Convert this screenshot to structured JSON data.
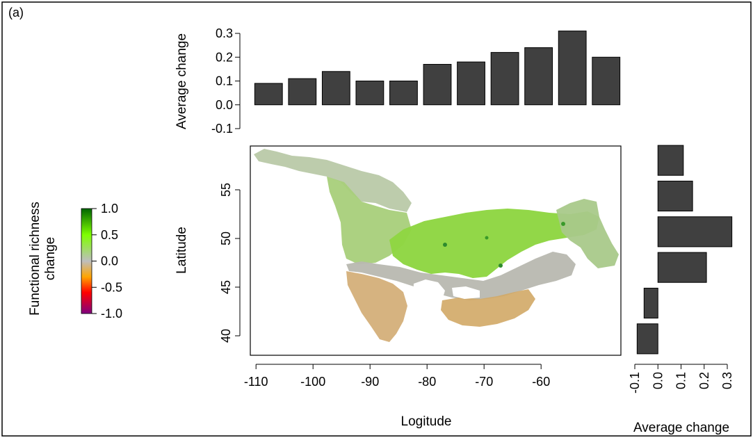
{
  "panel_label": "(a)",
  "colors": {
    "bar_fill": "#404040",
    "bar_stroke": "#000000",
    "legend_gradient": [
      "#800080",
      "#ff0000",
      "#ffa500",
      "#bebebe",
      "#7fff00",
      "#006400"
    ]
  },
  "legend": {
    "title_line1": "Functional richness",
    "title_line2": "change",
    "ticks": [
      "1.0",
      "0.5",
      "0.0",
      "-0.5",
      "-1.0"
    ],
    "range": [
      -1.0,
      1.0
    ]
  },
  "chart_data": [
    {
      "type": "bar",
      "orientation": "vertical",
      "name": "top-marginal",
      "ylabel": "Average change",
      "ylim": [
        -0.1,
        0.3
      ],
      "yticks": [
        -0.1,
        0.0,
        0.1,
        0.2,
        0.3
      ],
      "ytick_labels": [
        "-0.1",
        "0.0",
        "0.1",
        "0.2",
        "0.3"
      ],
      "longitude_bins": [
        -108,
        -102,
        -96,
        -90,
        -84,
        -78,
        -72,
        -66,
        -60,
        -54,
        -48
      ],
      "values": [
        0.09,
        0.11,
        0.14,
        0.1,
        0.1,
        0.17,
        0.18,
        0.22,
        0.24,
        0.31,
        0.2
      ]
    },
    {
      "type": "map",
      "name": "functional-richness-map",
      "xlabel": "Logitude",
      "ylabel": "Latitude",
      "xlim": [
        -111,
        -46
      ],
      "ylim": [
        38,
        59.5
      ],
      "xticks": [
        -110,
        -100,
        -90,
        -80,
        -70,
        -60
      ],
      "xtick_labels": [
        "-110",
        "-100",
        "-90",
        "-80",
        "-70",
        "-60"
      ],
      "yticks": [
        40,
        45,
        50,
        55
      ],
      "ytick_labels": [
        "40",
        "45",
        "50",
        "55"
      ]
    },
    {
      "type": "bar",
      "orientation": "horizontal",
      "name": "right-marginal",
      "xlabel": "Average change",
      "xlim": [
        -0.1,
        0.3
      ],
      "xticks": [
        -0.1,
        0.0,
        0.1,
        0.2,
        0.3
      ],
      "xtick_labels": [
        "-0.1",
        "0.0",
        "0.1",
        "0.2",
        "0.3"
      ],
      "latitude_bins": [
        39.5,
        43.0,
        46.5,
        50.0,
        53.5,
        57.0
      ],
      "values": [
        -0.09,
        -0.06,
        0.21,
        0.32,
        0.15,
        0.11
      ]
    }
  ]
}
